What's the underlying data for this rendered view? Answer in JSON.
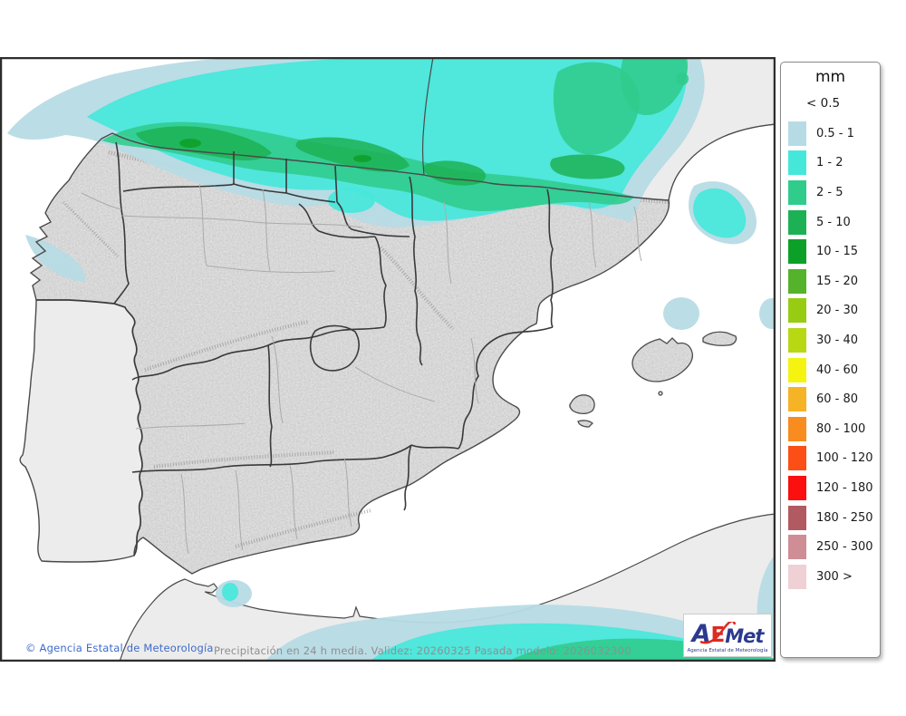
{
  "legend": {
    "title": "mm",
    "first_label": "< 0.5",
    "entries": [
      {
        "label": "0.5 - 1",
        "color": "#b7dbe5"
      },
      {
        "label": "1 - 2",
        "color": "#46e7db"
      },
      {
        "label": "2 - 5",
        "color": "#2fcc8c"
      },
      {
        "label": "5 - 10",
        "color": "#1db155"
      },
      {
        "label": "10 - 15",
        "color": "#0da029"
      },
      {
        "label": "15 - 20",
        "color": "#55b22b"
      },
      {
        "label": "20 - 30",
        "color": "#98cc12"
      },
      {
        "label": "30 - 40",
        "color": "#b8d814"
      },
      {
        "label": "40 - 60",
        "color": "#f4f410"
      },
      {
        "label": "60 - 80",
        "color": "#f6b325"
      },
      {
        "label": "80 - 100",
        "color": "#f98c1e"
      },
      {
        "label": "100 - 120",
        "color": "#fb4f16"
      },
      {
        "label": "120 - 180",
        "color": "#fb0f0f"
      },
      {
        "label": "180 - 250",
        "color": "#b25a62"
      },
      {
        "label": "250 - 300",
        "color": "#cf8d96"
      },
      {
        "label": "300 >",
        "color": "#efd0d5"
      }
    ]
  },
  "map": {
    "copyright": "© Agencia Estatal de Meteorología",
    "status_text": "Precipitación en 24 h media. Validez: 20260325 Pasada modelo: 2026032300",
    "copyright_color": "#3e6bcb",
    "status_color": "#8f8f8f",
    "sea_color": "#ffffff",
    "outside_land_color": "#ececec",
    "spain_fill_color": "#e4e4e4",
    "coast_color": "#4a4a4a",
    "community_border_color": "#3a3a3a",
    "province_border_color": "#ababab",
    "frame_color": "#2d2d2d"
  },
  "logo": {
    "a": "A",
    "e": "E",
    "met": "Met",
    "subtitle": "Agencia Estatal de Meteorología",
    "blue": "#2b3a8f",
    "red": "#de2a1f"
  }
}
